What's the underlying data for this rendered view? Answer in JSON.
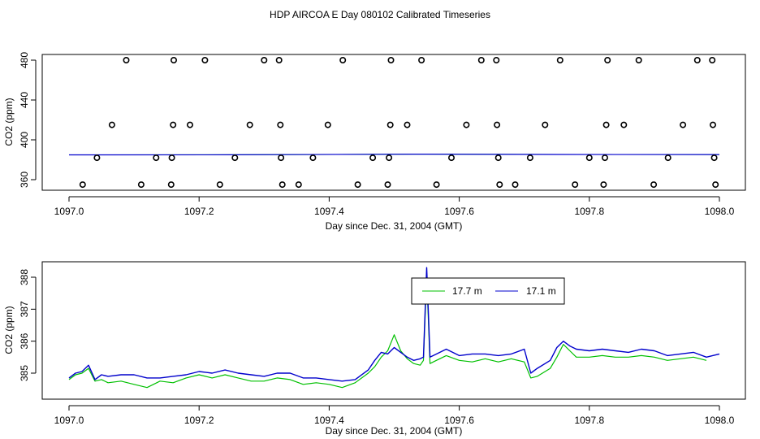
{
  "figure": {
    "title": "HDP AIRCOA E  Day 080102  Calibrated Timeseries"
  },
  "chart_data": [
    {
      "type": "scatter",
      "xlabel": "Day since Dec. 31, 2004 (GMT)",
      "ylabel": "CO2 (ppm)",
      "xlim": [
        1097.0,
        1098.0
      ],
      "ylim": [
        350,
        485
      ],
      "x_ticks": [
        1097.0,
        1097.2,
        1097.4,
        1097.6,
        1097.8,
        1098.0
      ],
      "x_tick_labels": [
        "1097.0",
        "1097.2",
        "1097.4",
        "1097.6",
        "1097.8",
        "1098.0"
      ],
      "y_ticks": [
        360,
        400,
        440,
        480
      ],
      "y_tick_labels": [
        "360",
        "400",
        "440",
        "480"
      ],
      "colors": {
        "point": "#000000",
        "green_line": "#00c000",
        "blue_line": "#0000cc"
      },
      "points": [
        [
          1097.021,
          355
        ],
        [
          1097.043,
          382
        ],
        [
          1097.066,
          415
        ],
        [
          1097.088,
          480
        ],
        [
          1097.111,
          355
        ],
        [
          1097.134,
          382
        ],
        [
          1097.157,
          355
        ],
        [
          1097.158,
          382
        ],
        [
          1097.16,
          415
        ],
        [
          1097.161,
          480
        ],
        [
          1097.186,
          415
        ],
        [
          1097.209,
          480
        ],
        [
          1097.232,
          355
        ],
        [
          1097.255,
          382
        ],
        [
          1097.278,
          415
        ],
        [
          1097.3,
          480
        ],
        [
          1097.323,
          480
        ],
        [
          1097.325,
          415
        ],
        [
          1097.326,
          382
        ],
        [
          1097.328,
          355
        ],
        [
          1097.353,
          355
        ],
        [
          1097.375,
          382
        ],
        [
          1097.398,
          415
        ],
        [
          1097.421,
          480
        ],
        [
          1097.444,
          355
        ],
        [
          1097.467,
          382
        ],
        [
          1097.49,
          355
        ],
        [
          1097.492,
          382
        ],
        [
          1097.494,
          415
        ],
        [
          1097.495,
          480
        ],
        [
          1097.52,
          415
        ],
        [
          1097.542,
          480
        ],
        [
          1097.565,
          355
        ],
        [
          1097.588,
          382
        ],
        [
          1097.611,
          415
        ],
        [
          1097.634,
          480
        ],
        [
          1097.657,
          480
        ],
        [
          1097.658,
          415
        ],
        [
          1097.66,
          382
        ],
        [
          1097.662,
          355
        ],
        [
          1097.686,
          355
        ],
        [
          1097.709,
          382
        ],
        [
          1097.732,
          415
        ],
        [
          1097.755,
          480
        ],
        [
          1097.778,
          355
        ],
        [
          1097.8,
          382
        ],
        [
          1097.822,
          355
        ],
        [
          1097.824,
          382
        ],
        [
          1097.826,
          415
        ],
        [
          1097.828,
          480
        ],
        [
          1097.853,
          415
        ],
        [
          1097.876,
          480
        ],
        [
          1097.899,
          355
        ],
        [
          1097.921,
          382
        ],
        [
          1097.944,
          415
        ],
        [
          1097.966,
          480
        ],
        [
          1097.989,
          480
        ],
        [
          1097.99,
          415
        ],
        [
          1097.992,
          382
        ],
        [
          1097.994,
          355
        ]
      ],
      "line_level": [
        [
          1097.0,
          384.9
        ],
        [
          1097.25,
          385.0
        ],
        [
          1097.55,
          385.6
        ],
        [
          1097.75,
          385.3
        ],
        [
          1098.0,
          385.2
        ]
      ]
    },
    {
      "type": "line",
      "xlabel": "Day since Dec. 31, 2004 (GMT)",
      "ylabel": "CO2 (ppm)",
      "xlim": [
        1097.0,
        1098.0
      ],
      "ylim": [
        384.45,
        388.45
      ],
      "x_ticks": [
        1097.0,
        1097.2,
        1097.4,
        1097.6,
        1097.8,
        1098.0
      ],
      "x_tick_labels": [
        "1097.0",
        "1097.2",
        "1097.4",
        "1097.6",
        "1097.8",
        "1098.0"
      ],
      "y_ticks": [
        385,
        386,
        387,
        388
      ],
      "y_tick_labels": [
        "385",
        "386",
        "387",
        "388"
      ],
      "legend_position": "top-center",
      "series": [
        {
          "name": "17.7 m",
          "color": "#00c000",
          "points": [
            [
              1097.0,
              384.8
            ],
            [
              1097.01,
              384.95
            ],
            [
              1097.02,
              385.0
            ],
            [
              1097.03,
              385.15
            ],
            [
              1097.04,
              384.75
            ],
            [
              1097.05,
              384.8
            ],
            [
              1097.06,
              384.7
            ],
            [
              1097.08,
              384.75
            ],
            [
              1097.1,
              384.65
            ],
            [
              1097.12,
              384.55
            ],
            [
              1097.14,
              384.75
            ],
            [
              1097.16,
              384.7
            ],
            [
              1097.18,
              384.85
            ],
            [
              1097.2,
              384.95
            ],
            [
              1097.22,
              384.85
            ],
            [
              1097.24,
              384.95
            ],
            [
              1097.26,
              384.85
            ],
            [
              1097.28,
              384.75
            ],
            [
              1097.3,
              384.75
            ],
            [
              1097.32,
              384.85
            ],
            [
              1097.34,
              384.8
            ],
            [
              1097.36,
              384.65
            ],
            [
              1097.38,
              384.7
            ],
            [
              1097.4,
              384.65
            ],
            [
              1097.42,
              384.55
            ],
            [
              1097.44,
              384.7
            ],
            [
              1097.46,
              385.0
            ],
            [
              1097.47,
              385.2
            ],
            [
              1097.48,
              385.5
            ],
            [
              1097.49,
              385.7
            ],
            [
              1097.5,
              386.2
            ],
            [
              1097.51,
              385.7
            ],
            [
              1097.52,
              385.45
            ],
            [
              1097.53,
              385.3
            ],
            [
              1097.54,
              385.25
            ],
            [
              1097.545,
              385.4
            ],
            [
              1097.55,
              388.05
            ],
            [
              1097.555,
              385.3
            ],
            [
              1097.56,
              385.35
            ],
            [
              1097.58,
              385.55
            ],
            [
              1097.6,
              385.4
            ],
            [
              1097.62,
              385.35
            ],
            [
              1097.64,
              385.45
            ],
            [
              1097.66,
              385.35
            ],
            [
              1097.68,
              385.45
            ],
            [
              1097.7,
              385.35
            ],
            [
              1097.71,
              384.85
            ],
            [
              1097.72,
              384.9
            ],
            [
              1097.74,
              385.15
            ],
            [
              1097.75,
              385.5
            ],
            [
              1097.76,
              385.9
            ],
            [
              1097.77,
              385.7
            ],
            [
              1097.78,
              385.5
            ],
            [
              1097.8,
              385.5
            ],
            [
              1097.82,
              385.55
            ],
            [
              1097.84,
              385.5
            ],
            [
              1097.86,
              385.5
            ],
            [
              1097.88,
              385.55
            ],
            [
              1097.9,
              385.5
            ],
            [
              1097.92,
              385.4
            ],
            [
              1097.94,
              385.45
            ],
            [
              1097.96,
              385.5
            ],
            [
              1097.98,
              385.4
            ]
          ]
        },
        {
          "name": "17.1 m",
          "color": "#0000cc",
          "points": [
            [
              1097.0,
              384.85
            ],
            [
              1097.01,
              385.0
            ],
            [
              1097.02,
              385.05
            ],
            [
              1097.03,
              385.25
            ],
            [
              1097.04,
              384.8
            ],
            [
              1097.05,
              384.95
            ],
            [
              1097.06,
              384.9
            ],
            [
              1097.08,
              384.95
            ],
            [
              1097.1,
              384.95
            ],
            [
              1097.12,
              384.85
            ],
            [
              1097.14,
              384.85
            ],
            [
              1097.16,
              384.9
            ],
            [
              1097.18,
              384.95
            ],
            [
              1097.2,
              385.05
            ],
            [
              1097.22,
              385.0
            ],
            [
              1097.24,
              385.1
            ],
            [
              1097.26,
              385.0
            ],
            [
              1097.28,
              384.95
            ],
            [
              1097.3,
              384.9
            ],
            [
              1097.32,
              385.0
            ],
            [
              1097.34,
              385.0
            ],
            [
              1097.36,
              384.85
            ],
            [
              1097.38,
              384.85
            ],
            [
              1097.4,
              384.8
            ],
            [
              1097.42,
              384.75
            ],
            [
              1097.44,
              384.8
            ],
            [
              1097.46,
              385.1
            ],
            [
              1097.47,
              385.4
            ],
            [
              1097.48,
              385.65
            ],
            [
              1097.49,
              385.6
            ],
            [
              1097.5,
              385.8
            ],
            [
              1097.51,
              385.65
            ],
            [
              1097.52,
              385.5
            ],
            [
              1097.53,
              385.4
            ],
            [
              1097.54,
              385.45
            ],
            [
              1097.545,
              385.5
            ],
            [
              1097.55,
              388.3
            ],
            [
              1097.555,
              385.5
            ],
            [
              1097.56,
              385.55
            ],
            [
              1097.58,
              385.75
            ],
            [
              1097.6,
              385.55
            ],
            [
              1097.62,
              385.6
            ],
            [
              1097.64,
              385.6
            ],
            [
              1097.66,
              385.55
            ],
            [
              1097.68,
              385.6
            ],
            [
              1097.7,
              385.75
            ],
            [
              1097.71,
              385.0
            ],
            [
              1097.72,
              385.15
            ],
            [
              1097.74,
              385.4
            ],
            [
              1097.75,
              385.8
            ],
            [
              1097.76,
              386.0
            ],
            [
              1097.77,
              385.85
            ],
            [
              1097.78,
              385.75
            ],
            [
              1097.8,
              385.7
            ],
            [
              1097.82,
              385.75
            ],
            [
              1097.84,
              385.7
            ],
            [
              1097.86,
              385.65
            ],
            [
              1097.88,
              385.75
            ],
            [
              1097.9,
              385.7
            ],
            [
              1097.92,
              385.55
            ],
            [
              1097.94,
              385.6
            ],
            [
              1097.96,
              385.65
            ],
            [
              1097.98,
              385.5
            ],
            [
              1098.0,
              385.6
            ]
          ]
        }
      ]
    }
  ]
}
